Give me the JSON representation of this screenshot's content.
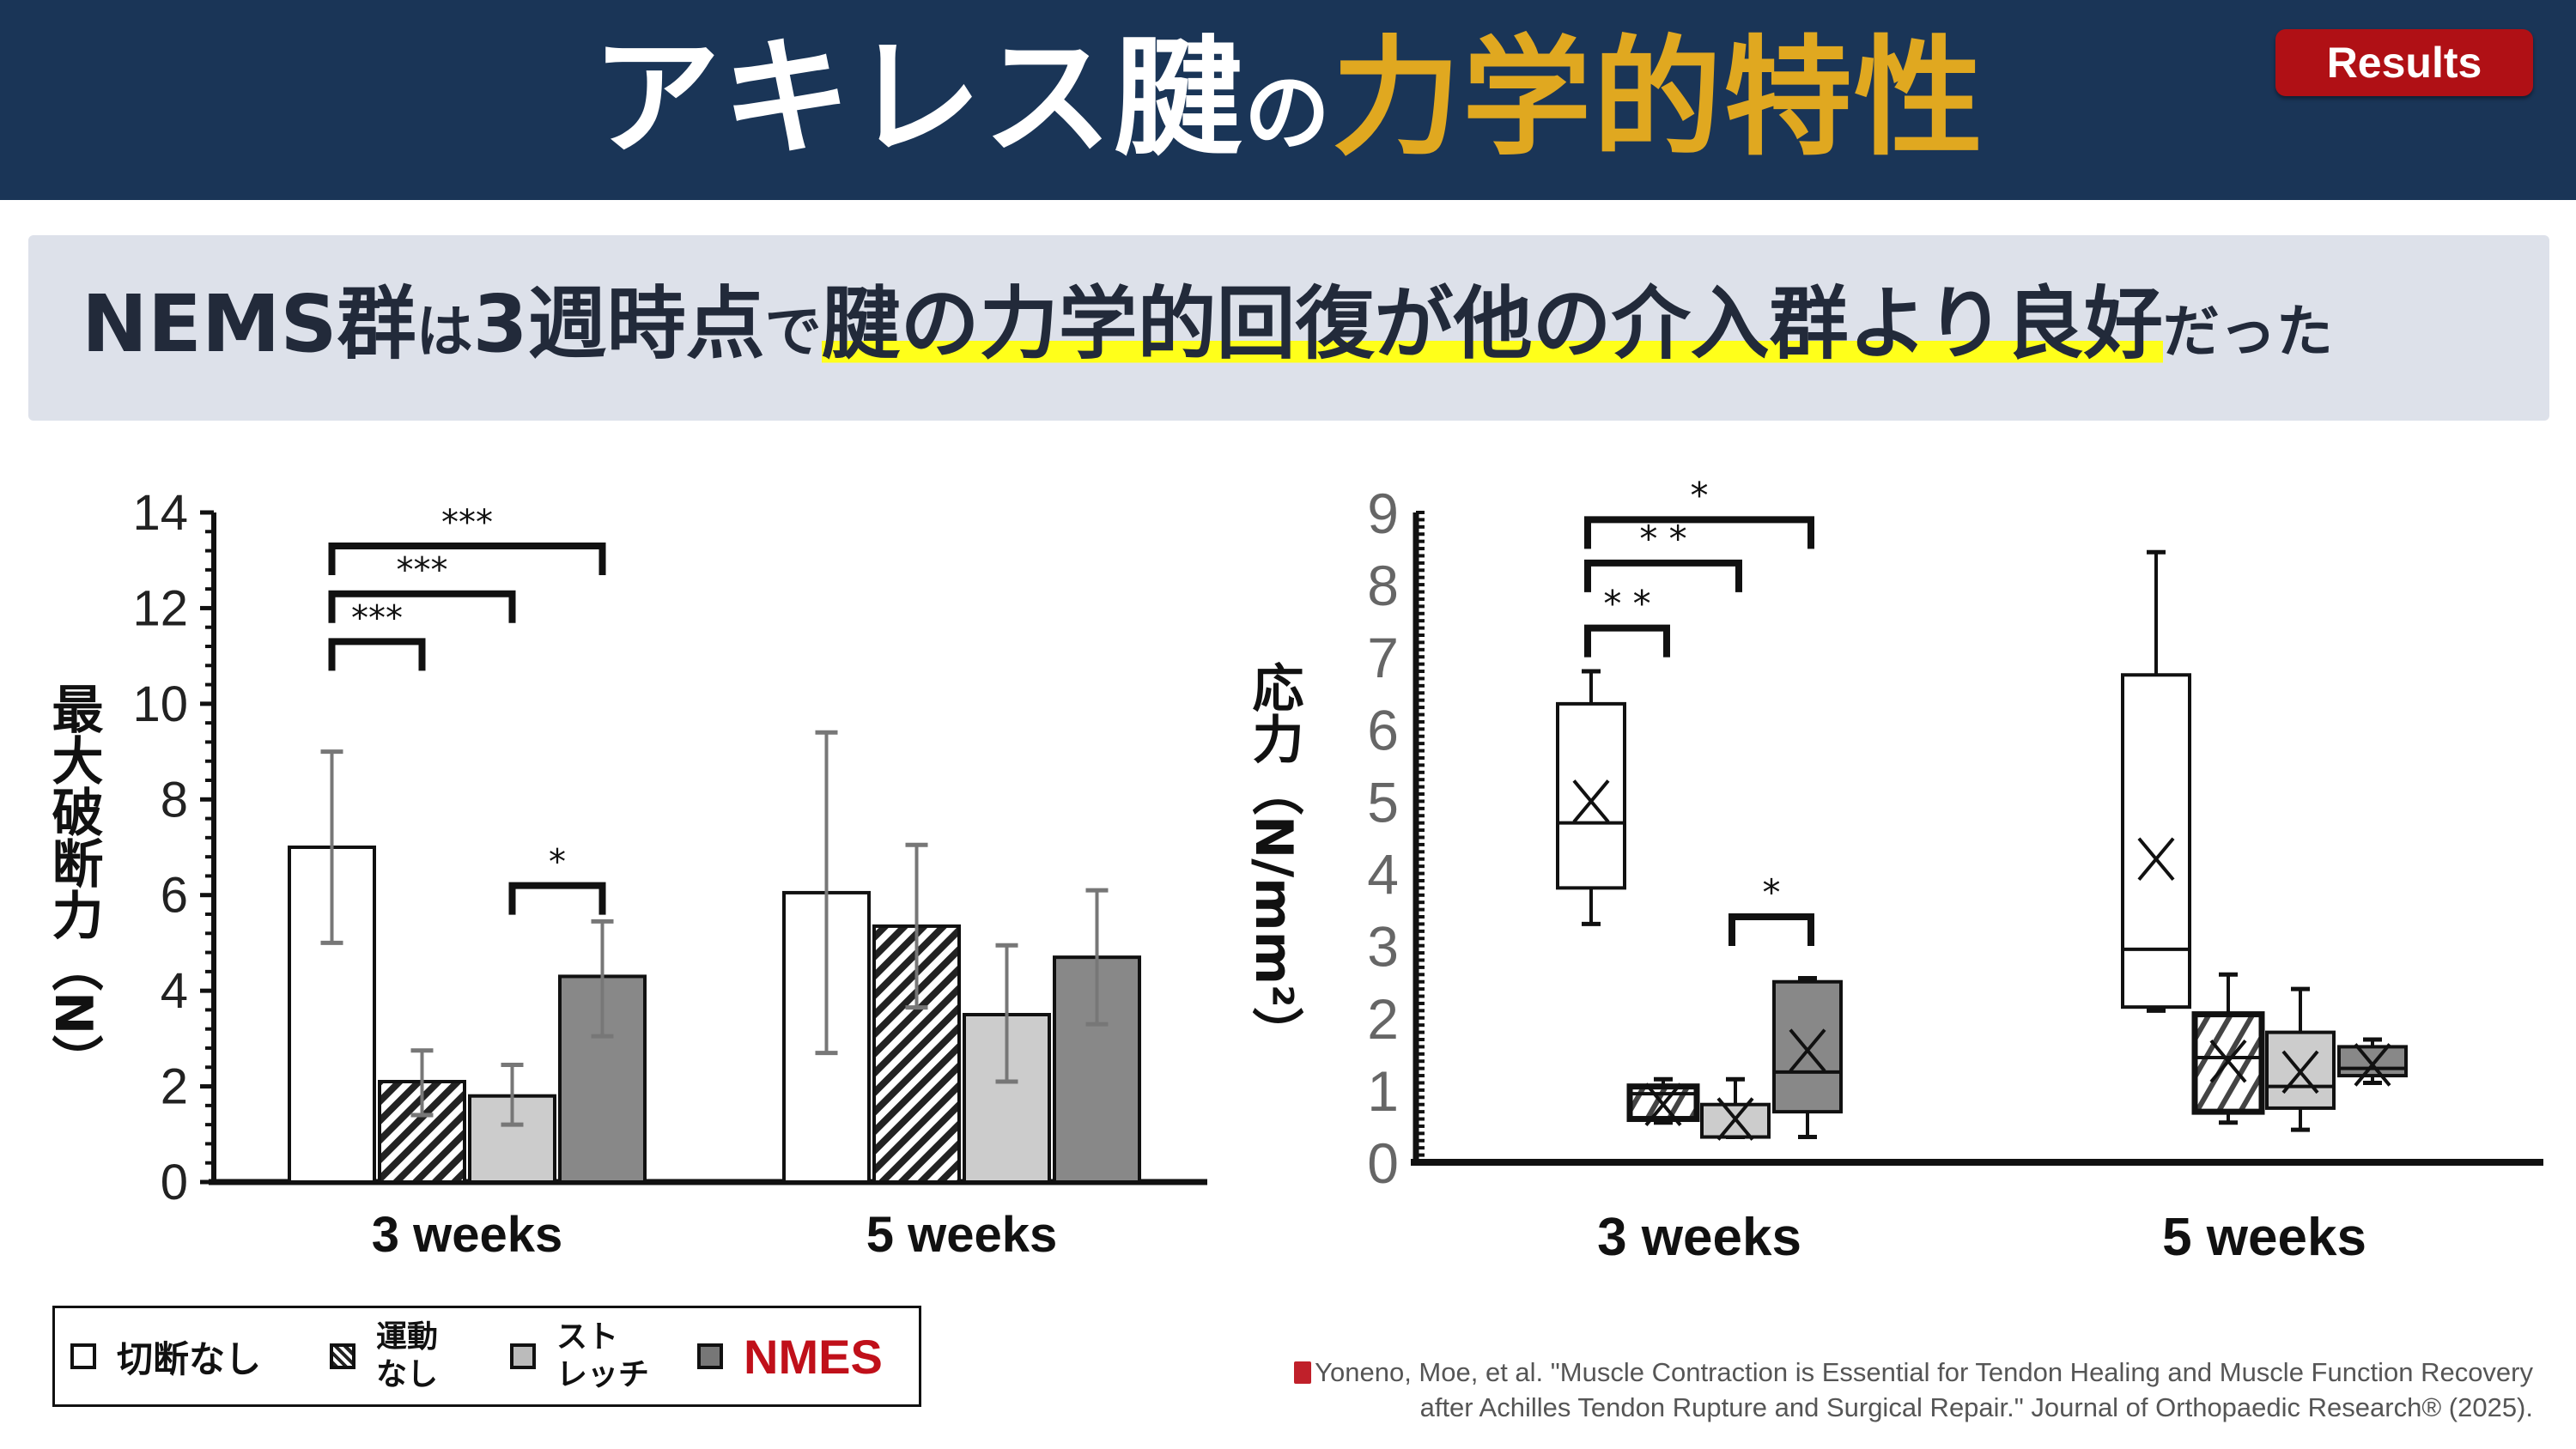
{
  "header": {
    "title_part1": "アキレス腱",
    "title_part2": "の",
    "title_part3": "力学的特性",
    "badge": "Results"
  },
  "subtitle": {
    "p1": "NEMS群",
    "p2": "は",
    "p3": "3週時点",
    "p4": "で",
    "p5": "腱の力学的回復が他の介入群より良好",
    "p6": "だった"
  },
  "colors": {
    "header_bg": "#1a3557",
    "accent_gold": "#e0a820",
    "badge_red": "#b01015",
    "highlight": "#ffff1a",
    "nmes_red": "#c0101a"
  },
  "legend": {
    "items": [
      {
        "label": "切断なし",
        "fill": "#ffffff"
      },
      {
        "label": "運動なし",
        "fill": "hatch"
      },
      {
        "label": "ストレッチ",
        "fill": "#cccccc"
      },
      {
        "label": "NMES",
        "fill": "#888888"
      }
    ],
    "label_lines": [
      [
        "運動",
        "なし"
      ],
      [
        "スト",
        "レッチ"
      ]
    ]
  },
  "chart_data": [
    {
      "type": "bar",
      "ylabel": "最大破断力（N）",
      "ylim": [
        0,
        14
      ],
      "yticks": [
        "0",
        "2",
        "4",
        "6",
        "8",
        "10",
        "12",
        "14"
      ],
      "categories": [
        "3 weeks",
        "5 weeks"
      ],
      "series": [
        {
          "name": "切断なし",
          "values": [
            7.0,
            6.05
          ],
          "err_low": [
            5.0,
            2.7
          ],
          "err_high": [
            9.0,
            9.4
          ]
        },
        {
          "name": "運動なし",
          "values": [
            2.1,
            5.35
          ],
          "err_low": [
            1.4,
            3.65
          ],
          "err_high": [
            2.75,
            7.05
          ]
        },
        {
          "name": "ストレッチ",
          "values": [
            1.8,
            3.5
          ],
          "err_low": [
            1.2,
            2.1
          ],
          "err_high": [
            2.45,
            4.95
          ]
        },
        {
          "name": "NMES",
          "values": [
            4.3,
            4.7
          ],
          "err_low": [
            3.05,
            3.3
          ],
          "err_high": [
            5.45,
            6.1
          ]
        }
      ],
      "significance": [
        {
          "category": "3 weeks",
          "from": 0,
          "to": 1,
          "label": "***",
          "level": 11.3
        },
        {
          "category": "3 weeks",
          "from": 0,
          "to": 2,
          "label": "***",
          "level": 12.3
        },
        {
          "category": "3 weeks",
          "from": 0,
          "to": 3,
          "label": "***",
          "level": 13.3
        },
        {
          "category": "3 weeks",
          "from": 2,
          "to": 3,
          "label": "*",
          "level": 6.2
        }
      ]
    },
    {
      "type": "box",
      "ylabel": "応力（N/mm²）",
      "ylim": [
        0,
        9
      ],
      "yticks": [
        "0",
        "1",
        "2",
        "3",
        "4",
        "5",
        "6",
        "7",
        "8",
        "9"
      ],
      "categories": [
        "3 weeks",
        "5 weeks"
      ],
      "series": [
        {
          "name": "切断なし",
          "boxes": [
            {
              "min": 3.3,
              "q1": 3.8,
              "median": 4.7,
              "q3": 6.35,
              "max": 6.8,
              "mean": 5.0
            },
            {
              "min": 2.1,
              "q1": 2.15,
              "median": 2.95,
              "q3": 6.75,
              "max": 8.45,
              "mean": 4.2
            }
          ]
        },
        {
          "name": "運動なし",
          "boxes": [
            {
              "min": 0.55,
              "q1": 0.6,
              "median": 0.95,
              "q3": 1.05,
              "max": 1.15,
              "mean": 0.8
            },
            {
              "min": 0.55,
              "q1": 0.7,
              "median": 1.45,
              "q3": 2.05,
              "max": 2.6,
              "mean": 1.4
            }
          ]
        },
        {
          "name": "ストレッチ",
          "boxes": [
            {
              "min": 0.35,
              "q1": 0.35,
              "median": 0.35,
              "q3": 0.8,
              "max": 1.15,
              "mean": 0.6
            },
            {
              "min": 0.45,
              "q1": 0.75,
              "median": 1.05,
              "q3": 1.8,
              "max": 2.4,
              "mean": 1.25
            }
          ]
        },
        {
          "name": "NMES",
          "boxes": [
            {
              "min": 0.35,
              "q1": 0.7,
              "median": 1.25,
              "q3": 2.5,
              "max": 2.55,
              "mean": 1.55
            },
            {
              "min": 1.1,
              "q1": 1.2,
              "median": 1.3,
              "q3": 1.6,
              "max": 1.7,
              "mean": 1.35
            }
          ]
        }
      ],
      "significance": [
        {
          "category": "3 weeks",
          "from": 0,
          "to": 1,
          "label": "* *",
          "level": 7.4
        },
        {
          "category": "3 weeks",
          "from": 0,
          "to": 2,
          "label": "* *",
          "level": 8.3
        },
        {
          "category": "3 weeks",
          "from": 0,
          "to": 3,
          "label": "*",
          "level": 8.9
        },
        {
          "category": "3 weeks",
          "from": 2,
          "to": 3,
          "label": "*",
          "level": 3.4
        }
      ]
    }
  ],
  "citation": {
    "icon": "book-icon",
    "line1": "Yoneno, Moe, et al. \"Muscle Contraction is Essential for Tendon Healing and Muscle Function Recovery",
    "line2": "after Achilles Tendon Rupture and Surgical Repair.\" Journal of Orthopaedic Research® (2025)."
  }
}
